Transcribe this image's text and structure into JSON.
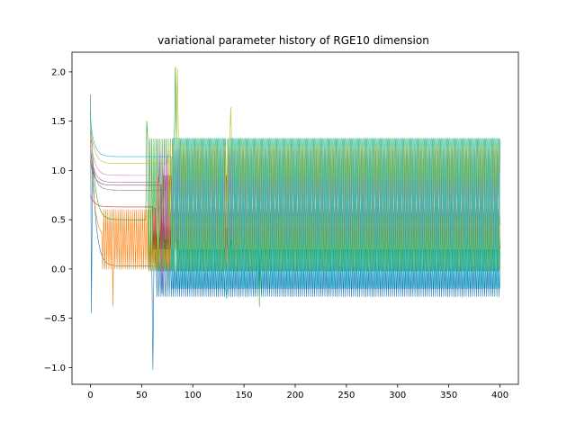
{
  "chart_data": {
    "type": "line",
    "title": "variational parameter history of RGE10 dimension",
    "xlabel": "",
    "ylabel": "",
    "xlim": [
      -18,
      418
    ],
    "ylim": [
      -1.17,
      2.2
    ],
    "grid": false,
    "legend": "none",
    "x_ticks": [
      0,
      50,
      100,
      150,
      200,
      250,
      300,
      350,
      400
    ],
    "x_tick_labels": [
      "0",
      "50",
      "100",
      "150",
      "200",
      "250",
      "300",
      "350",
      "400"
    ],
    "y_ticks": [
      -1.0,
      -0.5,
      0.0,
      0.5,
      1.0,
      1.5,
      2.0
    ],
    "y_tick_labels": [
      "−1.0",
      "−0.5",
      "0.0",
      "0.5",
      "1.0",
      "1.5",
      "2.0"
    ],
    "iterations": [
      0,
      400
    ],
    "series": [
      {
        "color": "#1f77b4",
        "start": 1.77,
        "settle": 0.03,
        "band_low": -0.28,
        "band_high": 0.18,
        "osc_from": 64,
        "spikes": [
          {
            "x": 1,
            "y": -0.45
          },
          {
            "x": 61,
            "y": -1.02
          }
        ]
      },
      {
        "color": "#ff7f0e",
        "start": 1.3,
        "settle": 0.3,
        "band_low": 0.0,
        "band_high": 0.6,
        "osc_from": 12,
        "spikes": [
          {
            "x": 22,
            "y": -0.38
          }
        ]
      },
      {
        "color": "#2ca02c",
        "start": 1.6,
        "settle": 0.5,
        "band_low": -0.02,
        "band_high": 1.32,
        "osc_from": 55,
        "spikes": [
          {
            "x": 55,
            "y": 1.5
          },
          {
            "x": 83,
            "y": 2.05
          },
          {
            "x": 165,
            "y": -0.38
          }
        ]
      },
      {
        "color": "#d62728",
        "start": 0.75,
        "settle": 0.63,
        "band_low": 0.2,
        "band_high": 0.62,
        "osc_from": 62,
        "spikes": [
          {
            "x": 66,
            "y": 0.95
          }
        ]
      },
      {
        "color": "#9467bd",
        "start": 1.2,
        "settle": 0.88,
        "band_low": 0.4,
        "band_high": 1.2,
        "osc_from": 68,
        "spikes": [
          {
            "x": 70,
            "y": -0.25
          }
        ]
      },
      {
        "color": "#8c564b",
        "start": 1.1,
        "settle": 0.85,
        "band_low": 0.2,
        "band_high": 0.95,
        "osc_from": 70,
        "spikes": []
      },
      {
        "color": "#e377c2",
        "start": 1.35,
        "settle": 0.95,
        "band_low": 0.3,
        "band_high": 1.05,
        "osc_from": 72,
        "spikes": []
      },
      {
        "color": "#7f7f7f",
        "start": 1.25,
        "settle": 0.8,
        "band_low": 0.45,
        "band_high": 0.85,
        "osc_from": 74,
        "spikes": []
      },
      {
        "color": "#bcbd22",
        "start": 1.45,
        "settle": 1.07,
        "band_low": 0.2,
        "band_high": 1.25,
        "osc_from": 76,
        "spikes": [
          {
            "x": 85,
            "y": 2.03
          },
          {
            "x": 137,
            "y": 1.64
          }
        ]
      },
      {
        "color": "#17becf",
        "start": 1.5,
        "settle": 1.14,
        "band_low": -0.2,
        "band_high": 1.33,
        "osc_from": 80,
        "spikes": [
          {
            "x": 133,
            "y": -0.3
          }
        ]
      }
    ]
  }
}
